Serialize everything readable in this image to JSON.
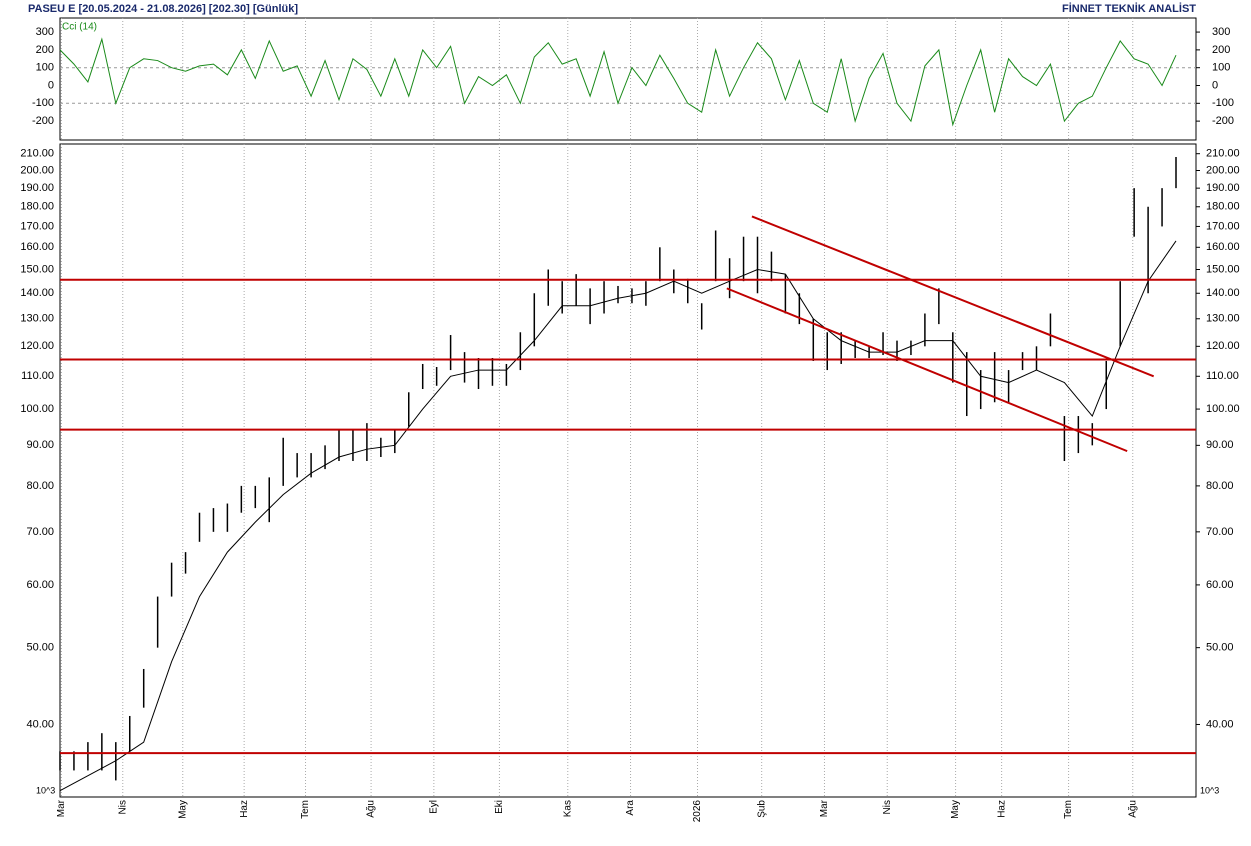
{
  "header": {
    "title": "PASEU E  [20.05.2024 - 21.08.2026]  [202.30]  [Günlük]",
    "brand": "FİNNET TEKNİK ANALİST"
  },
  "chart_data": [
    {
      "type": "line",
      "ylim": [
        -306,
        379
      ],
      "yticks": [
        300,
        200,
        100,
        0,
        -100,
        -200
      ],
      "guides": [
        100,
        -100
      ],
      "series": [
        {
          "name": "Cci (14)",
          "color": "#1a8a1a",
          "values": [
            200,
            120,
            20,
            260,
            -100,
            100,
            150,
            140,
            100,
            80,
            110,
            120,
            60,
            200,
            40,
            250,
            80,
            110,
            -60,
            140,
            -80,
            150,
            90,
            -60,
            150,
            -60,
            200,
            100,
            220,
            -100,
            50,
            0,
            60,
            -100,
            160,
            240,
            120,
            150,
            -60,
            190,
            -100,
            100,
            0,
            170,
            40,
            -100,
            -150,
            200,
            -60,
            100,
            240,
            150,
            -80,
            140,
            -100,
            -150,
            150,
            -200,
            40,
            180,
            -100,
            -200,
            110,
            200,
            -220,
            0,
            200,
            -150,
            150,
            50,
            0,
            120,
            -200,
            -100,
            -60,
            100,
            250,
            150,
            120,
            0,
            170
          ]
        }
      ]
    },
    {
      "type": "hl",
      "log": true,
      "color": "#000000",
      "ylim": [
        32.4,
        216
      ],
      "unit_label": "10^3",
      "yticks": [
        {
          "value": 210,
          "label": "210.00"
        },
        {
          "value": 200,
          "label": "200.00"
        },
        {
          "value": 190,
          "label": "190.00"
        },
        {
          "value": 180,
          "label": "180.00"
        },
        {
          "value": 170,
          "label": "170.00"
        },
        {
          "value": 160,
          "label": "160.00"
        },
        {
          "value": 150,
          "label": "150.00"
        },
        {
          "value": 140,
          "label": "140.00"
        },
        {
          "value": 130,
          "label": "130.00"
        },
        {
          "value": 120,
          "label": "120.00"
        },
        {
          "value": 110,
          "label": "110.00"
        },
        {
          "value": 100,
          "label": "100.00"
        },
        {
          "value": 90,
          "label": "90.00"
        },
        {
          "value": 80,
          "label": "80.00"
        },
        {
          "value": 70,
          "label": "70.00"
        },
        {
          "value": 60,
          "label": "60.00"
        },
        {
          "value": 50,
          "label": "50.00"
        },
        {
          "value": 40,
          "label": "40.00"
        }
      ],
      "xlim": [
        0,
        80
      ],
      "xticks": [
        {
          "value": 0.1,
          "label": "Mar"
        },
        {
          "value": 4.5,
          "label": "Nis"
        },
        {
          "value": 8.8,
          "label": "May"
        },
        {
          "value": 13.2,
          "label": "Haz"
        },
        {
          "value": 17.6,
          "label": "Tem"
        },
        {
          "value": 22.3,
          "label": "Ağu"
        },
        {
          "value": 26.8,
          "label": "Eyl"
        },
        {
          "value": 31.5,
          "label": "Eki"
        },
        {
          "value": 36.4,
          "label": "Kas"
        },
        {
          "value": 40.9,
          "label": "Ara"
        },
        {
          "value": 45.7,
          "label": "2026"
        },
        {
          "value": 50.3,
          "label": "Şub"
        },
        {
          "value": 54.8,
          "label": "Mar"
        },
        {
          "value": 59.3,
          "label": "Nis"
        },
        {
          "value": 64.2,
          "label": "May"
        },
        {
          "value": 67.5,
          "label": "Haz"
        },
        {
          "value": 72.3,
          "label": "Tem"
        },
        {
          "value": 76.9,
          "label": "Ağu"
        }
      ],
      "x": [
        0,
        1,
        2,
        3,
        4,
        5,
        6,
        7,
        8,
        9,
        10,
        11,
        12,
        13,
        14,
        15,
        16,
        17,
        18,
        19,
        20,
        21,
        22,
        23,
        24,
        25,
        26,
        27,
        28,
        29,
        30,
        31,
        32,
        33,
        34,
        35,
        36,
        37,
        38,
        39,
        40,
        41,
        42,
        43,
        44,
        45,
        46,
        47,
        48,
        49,
        50,
        51,
        52,
        53,
        54,
        55,
        56,
        57,
        58,
        59,
        60,
        61,
        62,
        63,
        64,
        65,
        66,
        67,
        68,
        69,
        70,
        71,
        72,
        73,
        74,
        75,
        76,
        77,
        78,
        79,
        80
      ],
      "high": [
        37,
        37,
        38,
        39,
        38,
        41,
        47,
        58,
        64,
        66,
        74,
        75,
        76,
        80,
        80,
        82,
        92,
        88,
        88,
        90,
        94,
        94,
        96,
        92,
        94,
        105,
        114,
        113,
        124,
        118,
        116,
        116,
        114,
        125,
        140,
        150,
        145,
        148,
        142,
        145,
        143,
        142,
        145,
        160,
        150,
        146,
        136,
        168,
        155,
        165,
        165,
        158,
        148,
        140,
        130,
        125,
        125,
        122,
        120,
        125,
        122,
        122,
        132,
        142,
        125,
        118,
        112,
        118,
        112,
        118,
        120,
        132,
        98,
        98,
        96,
        115,
        145,
        190,
        180,
        190,
        208
      ],
      "low": [
        35,
        35,
        35,
        35,
        34,
        37,
        42,
        50,
        58,
        62,
        68,
        70,
        70,
        74,
        75,
        72,
        80,
        82,
        82,
        84,
        86,
        86,
        86,
        87,
        88,
        95,
        106,
        107,
        112,
        108,
        106,
        107,
        107,
        112,
        120,
        135,
        132,
        135,
        128,
        132,
        136,
        136,
        135,
        145,
        140,
        136,
        126,
        145,
        138,
        145,
        140,
        145,
        132,
        128,
        115,
        112,
        114,
        116,
        116,
        117,
        115,
        117,
        120,
        128,
        108,
        98,
        100,
        102,
        102,
        112,
        112,
        120,
        86,
        88,
        90,
        100,
        120,
        165,
        140,
        170,
        190
      ],
      "lines": [
        {
          "color": "#000000",
          "x": [
            0,
            4,
            6,
            8,
            10,
            12,
            14,
            16,
            18,
            20,
            22,
            24,
            26,
            28,
            30,
            32,
            34,
            36,
            38,
            40,
            42,
            44,
            46,
            48,
            50,
            52,
            54,
            56,
            58,
            60,
            62,
            64,
            66,
            68,
            70,
            72,
            74,
            76,
            78,
            80
          ],
          "values": [
            33,
            36,
            38,
            48,
            58,
            66,
            72,
            78,
            83,
            87,
            89,
            90,
            100,
            110,
            112,
            112,
            122,
            135,
            135,
            138,
            140,
            145,
            140,
            145,
            150,
            148,
            130,
            122,
            118,
            118,
            122,
            122,
            110,
            108,
            112,
            108,
            98,
            120,
            145,
            163
          ]
        }
      ],
      "levels": [
        145.6,
        115.5,
        94.2,
        36.8
      ],
      "level_color": "#c00000",
      "trend_lines": [
        {
          "x": [
            49.6,
            78.4
          ],
          "values": [
            175,
            110
          ]
        },
        {
          "x": [
            47.8,
            76.5
          ],
          "values": [
            142,
            88.5
          ]
        }
      ]
    }
  ]
}
